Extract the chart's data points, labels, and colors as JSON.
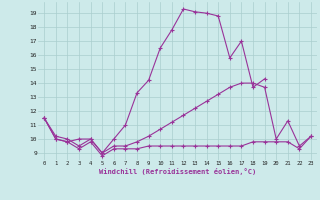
{
  "xlabel": "Windchill (Refroidissement éolien,°C)",
  "xlim": [
    -0.5,
    23.5
  ],
  "ylim": [
    8.5,
    19.8
  ],
  "yticks": [
    9,
    10,
    11,
    12,
    13,
    14,
    15,
    16,
    17,
    18,
    19
  ],
  "xticks": [
    0,
    1,
    2,
    3,
    4,
    5,
    6,
    7,
    8,
    9,
    10,
    11,
    12,
    13,
    14,
    15,
    16,
    17,
    18,
    19,
    20,
    21,
    22,
    23
  ],
  "bg_color": "#cdeaea",
  "grid_color": "#aacece",
  "line_color": "#993399",
  "line_width": 0.8,
  "marker": "+",
  "marker_size": 3,
  "series": [
    {
      "x": [
        0,
        1,
        2,
        3,
        4,
        5,
        6,
        7,
        8,
        9,
        10,
        11,
        12,
        13,
        14,
        15,
        16,
        17,
        18,
        19,
        20,
        21,
        22,
        23
      ],
      "y": [
        11.5,
        10.0,
        9.8,
        9.3,
        9.8,
        8.8,
        9.3,
        9.3,
        9.3,
        9.5,
        9.5,
        9.5,
        9.5,
        9.5,
        9.5,
        9.5,
        9.5,
        9.5,
        9.8,
        9.8,
        9.8,
        9.8,
        9.3,
        10.2
      ]
    },
    {
      "x": [
        0,
        1,
        2,
        3,
        4,
        5,
        6,
        7,
        8,
        9,
        10,
        11,
        12,
        13,
        14,
        15,
        16,
        17,
        18,
        19
      ],
      "y": [
        11.5,
        10.0,
        9.8,
        10.0,
        10.0,
        9.0,
        10.0,
        11.0,
        13.3,
        14.2,
        16.5,
        17.8,
        19.3,
        19.1,
        19.0,
        18.8,
        15.8,
        17.0,
        13.7,
        14.3
      ]
    },
    {
      "x": [
        0,
        1,
        2,
        3,
        4,
        5,
        6,
        7,
        8,
        9,
        10,
        11,
        12,
        13,
        14,
        15,
        16,
        17,
        18,
        19,
        20,
        21,
        22,
        23
      ],
      "y": [
        11.5,
        10.2,
        10.0,
        9.5,
        10.0,
        9.0,
        9.5,
        9.5,
        9.8,
        10.2,
        10.7,
        11.2,
        11.7,
        12.2,
        12.7,
        13.2,
        13.7,
        14.0,
        14.0,
        13.7,
        10.0,
        11.3,
        9.5,
        10.2
      ]
    }
  ]
}
